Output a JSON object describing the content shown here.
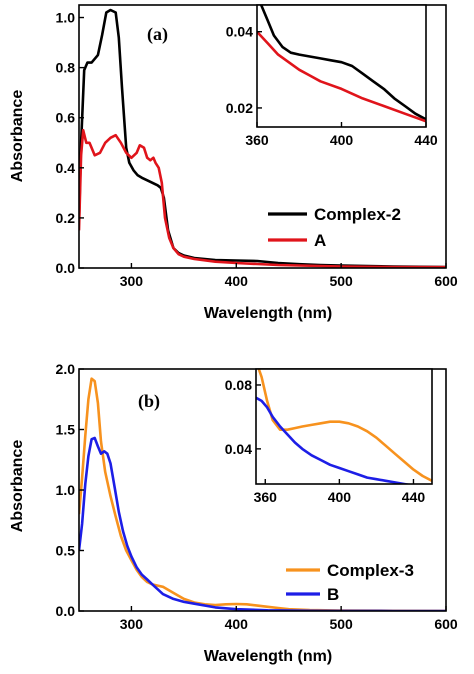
{
  "chart_data": [
    {
      "type": "line",
      "panel_label": "(a)",
      "xlabel": "Wavelength (nm)",
      "ylabel": "Absorbance",
      "xlim": [
        250,
        600
      ],
      "ylim": [
        0,
        1.05
      ],
      "xticks": [
        "300",
        "400",
        "500",
        "600"
      ],
      "yticks": [
        "0.0",
        "0.2",
        "0.4",
        "0.6",
        "0.8",
        "1.0"
      ],
      "legend_position": "bottom-right",
      "series": [
        {
          "name": "Complex-2",
          "color": "#000000",
          "x": [
            250,
            252,
            255,
            258,
            262,
            268,
            272,
            276,
            280,
            285,
            288,
            291,
            295,
            298,
            302,
            306,
            310,
            315,
            320,
            325,
            328,
            331,
            335,
            340,
            345,
            350,
            360,
            380,
            400,
            420,
            440,
            460,
            480,
            500,
            550,
            600
          ],
          "y": [
            0.18,
            0.5,
            0.79,
            0.82,
            0.82,
            0.85,
            0.93,
            1.02,
            1.03,
            1.02,
            0.92,
            0.72,
            0.48,
            0.42,
            0.39,
            0.37,
            0.36,
            0.35,
            0.34,
            0.33,
            0.32,
            0.28,
            0.15,
            0.08,
            0.06,
            0.05,
            0.04,
            0.032,
            0.03,
            0.028,
            0.02,
            0.015,
            0.012,
            0.01,
            0.006,
            0.004
          ]
        },
        {
          "name": "A",
          "color": "#e0141b",
          "x": [
            250,
            252,
            254,
            257,
            260,
            265,
            270,
            275,
            280,
            285,
            290,
            295,
            300,
            305,
            308,
            312,
            315,
            318,
            321,
            323,
            326,
            329,
            332,
            336,
            340,
            345,
            350,
            360,
            380,
            400,
            420,
            440,
            460,
            480,
            500,
            550,
            600
          ],
          "y": [
            0.15,
            0.45,
            0.55,
            0.5,
            0.5,
            0.45,
            0.46,
            0.5,
            0.52,
            0.53,
            0.5,
            0.46,
            0.44,
            0.46,
            0.49,
            0.48,
            0.44,
            0.43,
            0.44,
            0.42,
            0.4,
            0.34,
            0.2,
            0.12,
            0.08,
            0.055,
            0.045,
            0.036,
            0.025,
            0.02,
            0.016,
            0.012,
            0.01,
            0.008,
            0.006,
            0.004,
            0.003
          ]
        }
      ],
      "inset": {
        "xlim": [
          360,
          440
        ],
        "ylim": [
          0.015,
          0.047
        ],
        "xticks": [
          "360",
          "400",
          "440"
        ],
        "yticks": [
          "0.02",
          "0.04"
        ],
        "series": [
          {
            "name": "Complex-2",
            "color": "#000000",
            "x": [
              360,
              362,
              365,
              368,
              372,
              376,
              380,
              385,
              390,
              395,
              400,
              405,
              410,
              415,
              420,
              425,
              430,
              435,
              440
            ],
            "y": [
              0.05,
              0.047,
              0.043,
              0.039,
              0.036,
              0.0345,
              0.034,
              0.0335,
              0.033,
              0.0325,
              0.032,
              0.031,
              0.029,
              0.027,
              0.025,
              0.0225,
              0.0205,
              0.0185,
              0.017
            ]
          },
          {
            "name": "A",
            "color": "#e0141b",
            "x": [
              360,
              365,
              370,
              375,
              380,
              385,
              390,
              400,
              410,
              420,
              430,
              440
            ],
            "y": [
              0.04,
              0.037,
              0.034,
              0.032,
              0.03,
              0.0285,
              0.027,
              0.025,
              0.0225,
              0.0205,
              0.0185,
              0.0165
            ]
          }
        ]
      }
    },
    {
      "type": "line",
      "panel_label": "(b)",
      "xlabel": "Wavelength (nm)",
      "ylabel": "Absorbance",
      "xlim": [
        250,
        600
      ],
      "ylim": [
        0,
        2.0
      ],
      "xticks": [
        "300",
        "400",
        "500",
        "600"
      ],
      "yticks": [
        "0.0",
        "0.5",
        "1.0",
        "1.5",
        "2.0"
      ],
      "legend_position": "bottom-right",
      "series": [
        {
          "name": "Complex-3",
          "color": "#f7921e",
          "x": [
            250,
            253,
            256,
            259,
            262,
            265,
            268,
            271,
            275,
            280,
            285,
            290,
            295,
            300,
            305,
            310,
            315,
            320,
            325,
            330,
            340,
            350,
            360,
            370,
            380,
            390,
            400,
            410,
            420,
            430,
            440,
            450,
            470,
            500,
            550,
            600
          ],
          "y": [
            0.8,
            1.1,
            1.45,
            1.75,
            1.92,
            1.9,
            1.72,
            1.4,
            1.15,
            0.95,
            0.78,
            0.62,
            0.5,
            0.42,
            0.34,
            0.28,
            0.24,
            0.22,
            0.21,
            0.2,
            0.15,
            0.1,
            0.07,
            0.055,
            0.05,
            0.055,
            0.058,
            0.055,
            0.045,
            0.035,
            0.025,
            0.015,
            0.008,
            0.004,
            0.002,
            0.001
          ]
        },
        {
          "name": "B",
          "color": "#1d1ee6",
          "x": [
            250,
            253,
            256,
            259,
            262,
            265,
            268,
            271,
            274,
            277,
            280,
            284,
            288,
            292,
            296,
            300,
            305,
            310,
            315,
            320,
            325,
            330,
            340,
            350,
            360,
            380,
            400,
            430,
            470,
            500,
            550,
            600
          ],
          "y": [
            0.5,
            0.72,
            1.05,
            1.28,
            1.42,
            1.43,
            1.36,
            1.3,
            1.32,
            1.3,
            1.22,
            1.02,
            0.82,
            0.66,
            0.54,
            0.45,
            0.36,
            0.3,
            0.26,
            0.22,
            0.18,
            0.14,
            0.1,
            0.075,
            0.06,
            0.03,
            0.015,
            0.006,
            0.002,
            0.001,
            0.0,
            0.0
          ]
        }
      ],
      "inset": {
        "xlim": [
          355,
          450
        ],
        "ylim": [
          0.018,
          0.09
        ],
        "xticks": [
          "360",
          "400",
          "440"
        ],
        "yticks": [
          "0.04",
          "0.08"
        ],
        "series": [
          {
            "name": "Complex-3",
            "color": "#f7921e",
            "x": [
              355,
              358,
              361,
              364,
              368,
              372,
              376,
              380,
              385,
              390,
              395,
              400,
              405,
              410,
              415,
              420,
              425,
              430,
              435,
              440,
              445,
              450
            ],
            "y": [
              0.095,
              0.085,
              0.07,
              0.058,
              0.052,
              0.052,
              0.053,
              0.054,
              0.055,
              0.056,
              0.057,
              0.057,
              0.056,
              0.054,
              0.051,
              0.047,
              0.042,
              0.037,
              0.032,
              0.027,
              0.023,
              0.02
            ]
          },
          {
            "name": "B",
            "color": "#1d1ee6",
            "x": [
              355,
              358,
              361,
              364,
              368,
              372,
              376,
              380,
              385,
              390,
              395,
              400,
              405,
              410,
              415,
              420,
              425,
              430,
              435,
              440
            ],
            "y": [
              0.072,
              0.07,
              0.066,
              0.06,
              0.054,
              0.049,
              0.044,
              0.04,
              0.036,
              0.033,
              0.03,
              0.028,
              0.026,
              0.024,
              0.022,
              0.021,
              0.02,
              0.019,
              0.018,
              0.017
            ]
          }
        ]
      }
    }
  ]
}
